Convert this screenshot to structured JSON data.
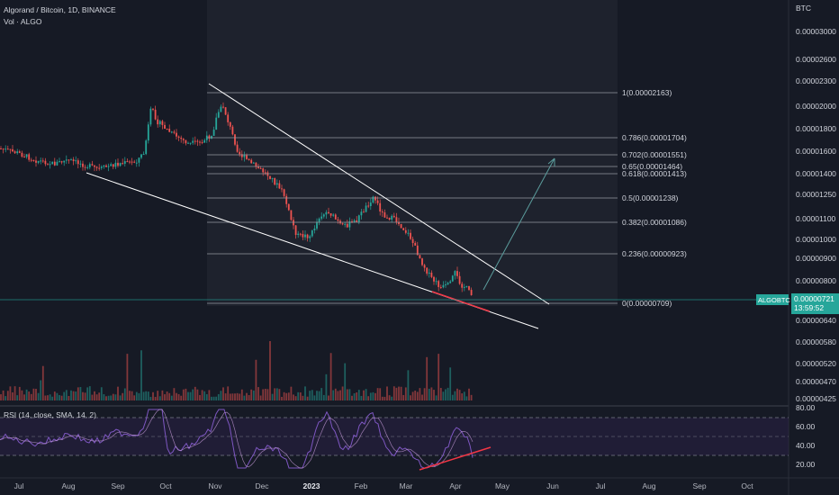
{
  "header": {
    "symbol_line": "Algorand / Bitcoin, 1D, BINANCE",
    "volume_line": "Vol · ALGO"
  },
  "price_axis": {
    "currency": "BTC",
    "labels": [
      "0.00003000",
      "0.00002600",
      "0.00002300",
      "0.00002000",
      "0.00001800",
      "0.00001600",
      "0.00001400",
      "0.00001250",
      "0.00001100",
      "0.00001000",
      "0.00000900",
      "0.00000800",
      "0.00000721",
      "0.00000640",
      "0.00000580",
      "0.00000520",
      "0.00000470",
      "0.00000425"
    ],
    "current_tag": "ALGOBTC",
    "current_price": "0.00000721",
    "countdown": "13:59:52"
  },
  "fib_levels": [
    {
      "label": "1(0.00002163)"
    },
    {
      "label": "0.786(0.00001704)"
    },
    {
      "label": "0.702(0.00001551)"
    },
    {
      "label": "0.65(0.00001464)"
    },
    {
      "label": "0.618(0.00001413)"
    },
    {
      "label": "0.5(0.00001238)"
    },
    {
      "label": "0.382(0.00001086)"
    },
    {
      "label": "0.236(0.00000923)"
    },
    {
      "label": "0(0.00000709)"
    }
  ],
  "rsi": {
    "title": "RSI (14, close, SMA, 14, 2)",
    "axis_labels": [
      "80.00",
      "60.00",
      "40.00",
      "20.00"
    ]
  },
  "time_axis": {
    "labels": [
      "Jul",
      "Aug",
      "Sep",
      "Oct",
      "Nov",
      "Dec",
      "2023",
      "Feb",
      "Mar",
      "Apr",
      "May",
      "Jun",
      "Jul",
      "Aug",
      "Sep",
      "Oct"
    ]
  },
  "colors": {
    "background": "#161a25",
    "bull": "#26a69a",
    "bear": "#ef5350",
    "rsi_line": "#7e57c2",
    "trendline": "#ffffff",
    "support_red": "#f23645",
    "projection_arrow": "#5b9c9c"
  }
}
